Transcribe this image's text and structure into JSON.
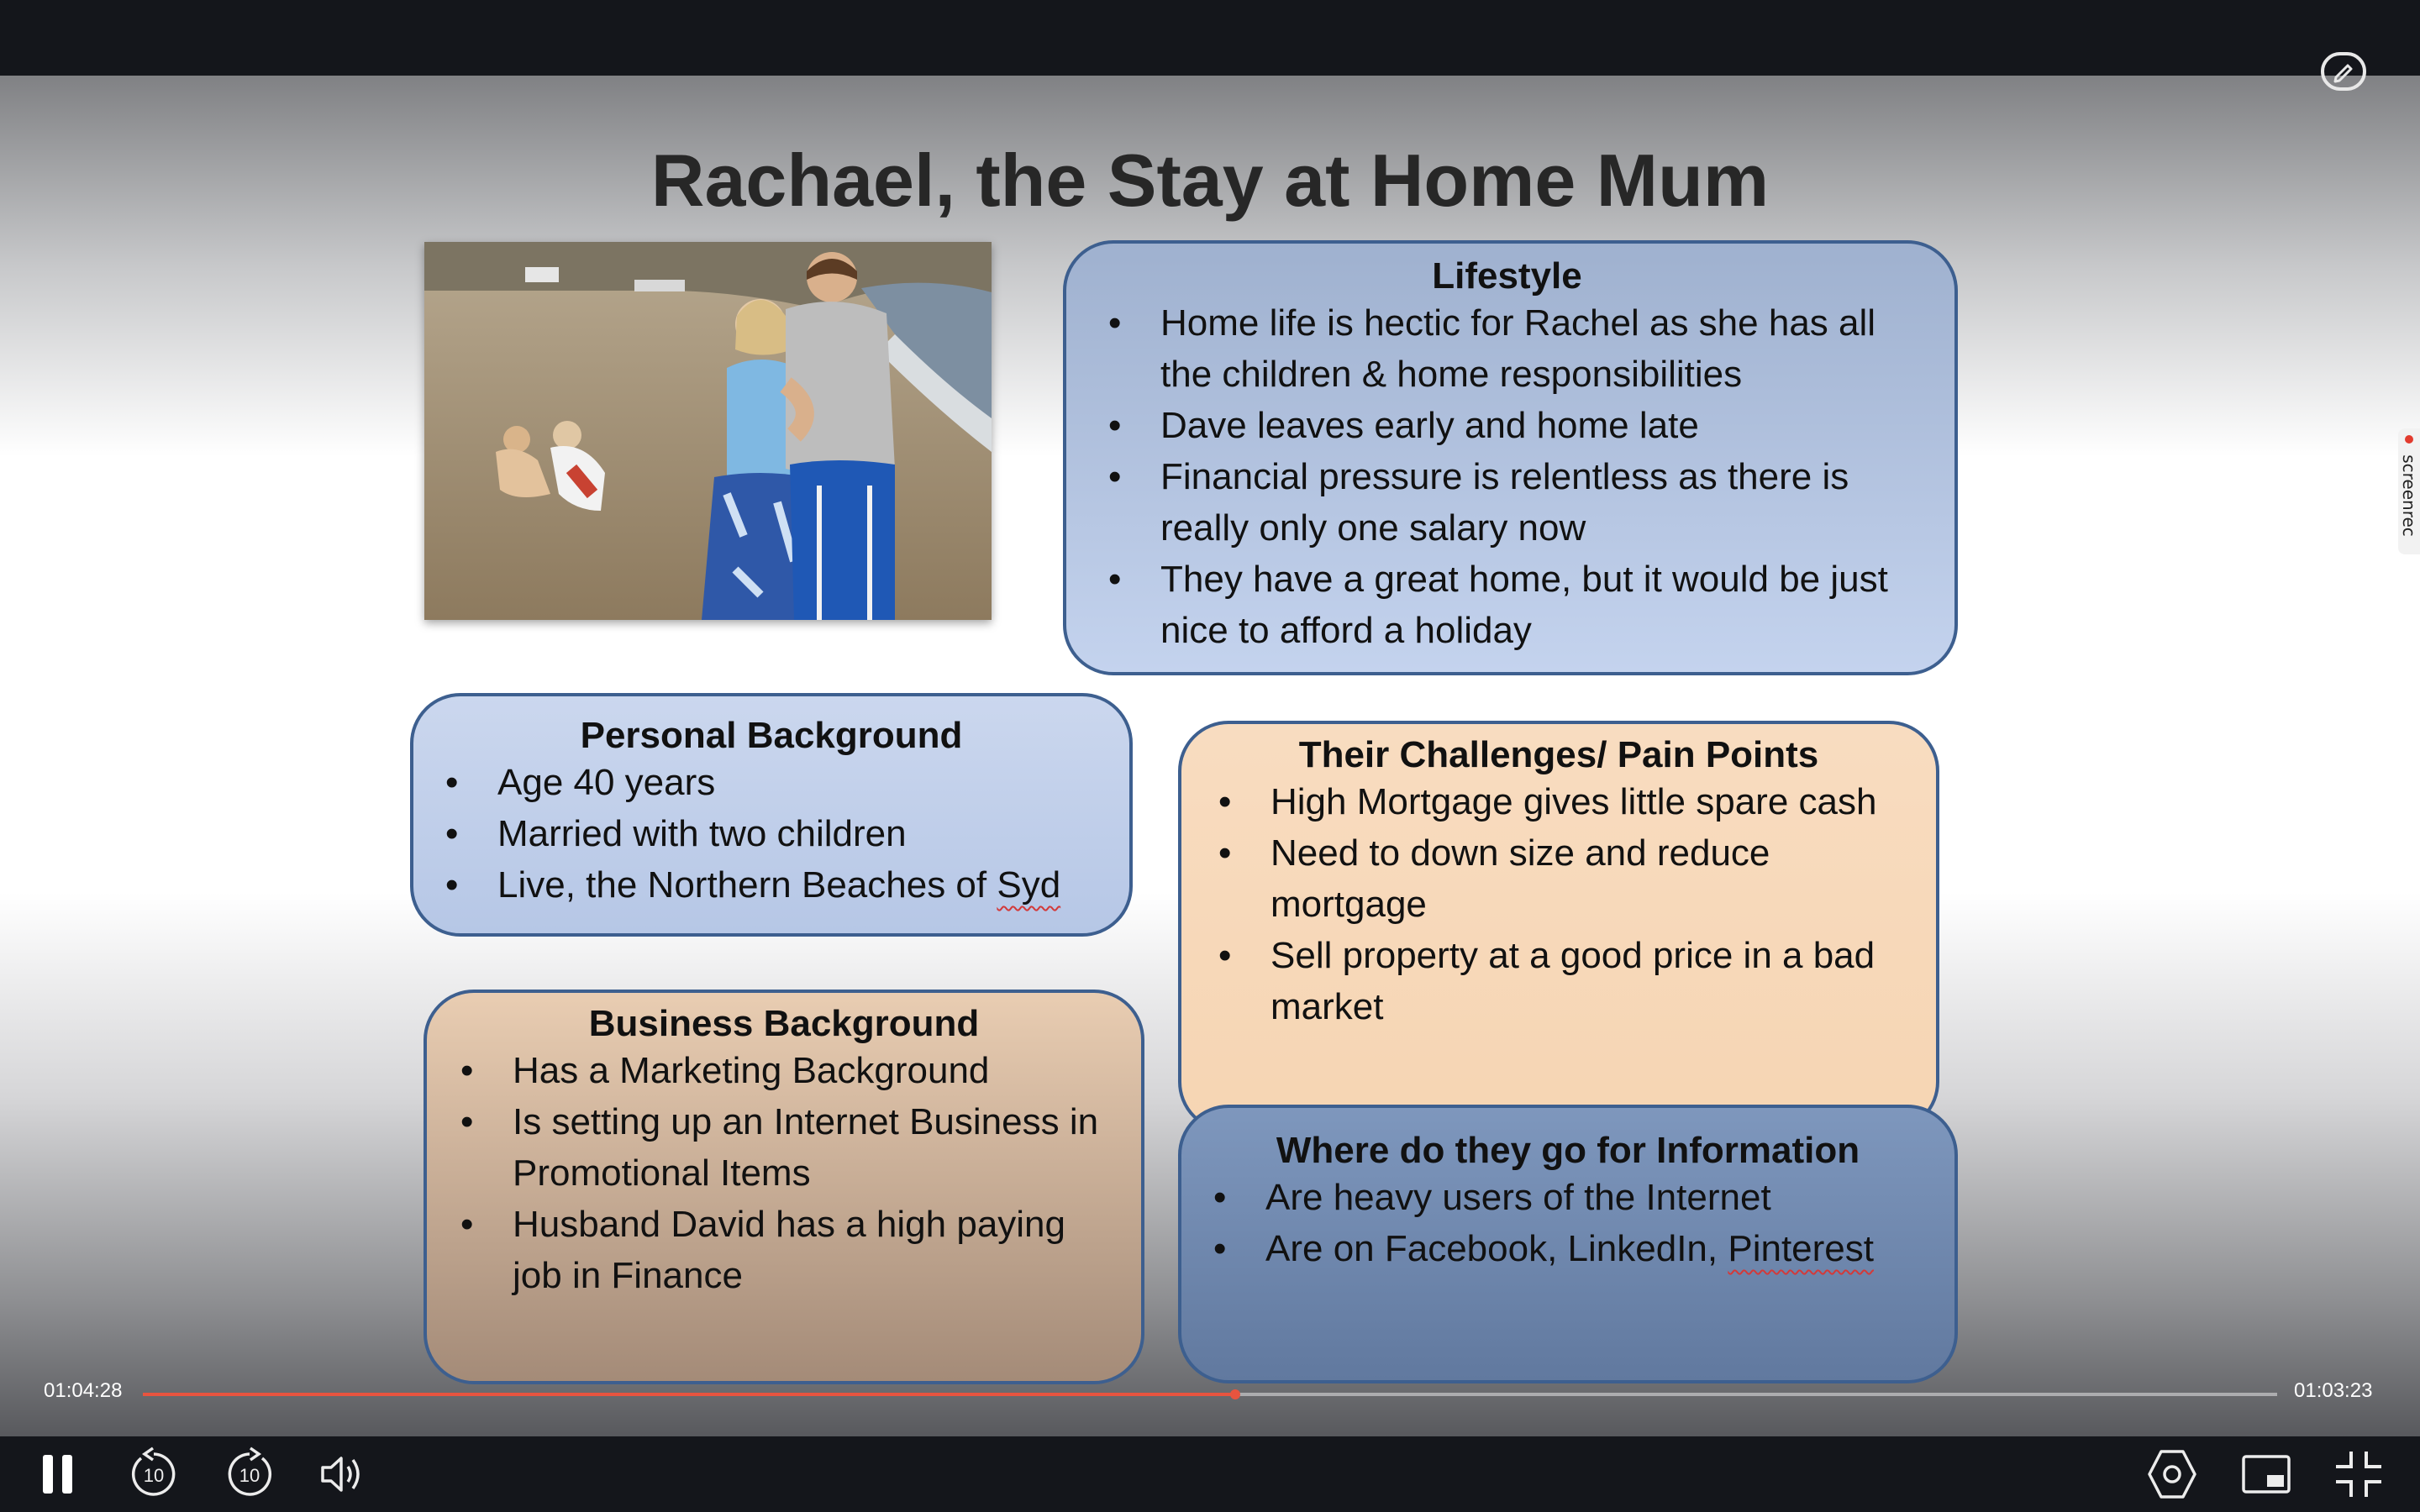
{
  "slide": {
    "title": "Rachael, the Stay at Home Mum",
    "lifestyle": {
      "heading": "Lifestyle",
      "items": [
        "Home life is hectic for Rachel as she has all the children & home responsibilities",
        "Dave leaves early and home late",
        "Financial pressure is relentless as there is really only one salary now",
        "They have a great home, but it would be just nice to afford a holiday"
      ]
    },
    "personal": {
      "heading": "Personal Background",
      "items": [
        "Age 40 years",
        "Married with two children",
        "Live, the Northern Beaches of "
      ],
      "last_word": "Syd"
    },
    "challenges": {
      "heading": "Their Challenges/ Pain Points",
      "items": [
        "High Mortgage gives little spare cash",
        "Need to down size and reduce mortgage",
        "Sell property at a good price in a bad market"
      ]
    },
    "business": {
      "heading": "Business Background",
      "items": [
        "Has a Marketing Background",
        "Is setting up an Internet Business in Promotional Items",
        "Husband David has a high paying job in Finance"
      ]
    },
    "info": {
      "heading": "Where do they go for Information",
      "items": [
        "Are heavy users of the Internet",
        "Are on Facebook, LinkedIn, "
      ],
      "last_word": "Pinterest"
    }
  },
  "watermark": "screenrec",
  "player": {
    "elapsed": "01:04:28",
    "remaining": "01:03:23",
    "progress_fraction": 0.512,
    "accent_color": "#e8543f",
    "skip_back_label": "10",
    "skip_forward_label": "10",
    "icons": [
      "pause-icon",
      "rewind-10-icon",
      "forward-10-icon",
      "volume-icon",
      "settings-icon",
      "picture-in-picture-icon",
      "exit-fullscreen-icon",
      "annotate-icon"
    ]
  }
}
